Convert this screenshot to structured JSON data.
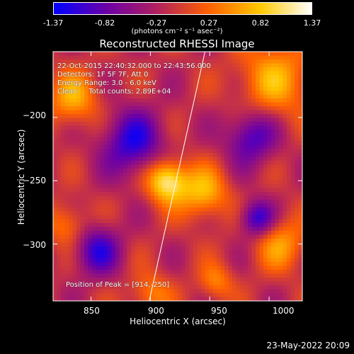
{
  "colorbar": {
    "ticks": [
      "-1.37",
      "-0.82",
      "-0.27",
      "0.27",
      "0.82",
      "1.37"
    ],
    "unit": "(photons cm⁻² s⁻¹ asec⁻²)"
  },
  "chart_data": {
    "type": "heatmap",
    "title": "Reconstructed RHESSI Image",
    "xlabel": "Heliocentric X (arcsec)",
    "ylabel": "Heliocentric Y (arcsec)",
    "xlim": [
      818,
      1028
    ],
    "ylim": [
      -345,
      -148
    ],
    "xticks": [
      850,
      900,
      950,
      1000
    ],
    "yticks": [
      -200,
      -250,
      -300
    ],
    "xtick_labels": [
      "850",
      "900",
      "950",
      "1000"
    ],
    "ytick_labels": [
      "−200",
      "−250",
      "−300"
    ],
    "color_range": [
      -1.37,
      1.37
    ],
    "colormap": [
      "#0000ff",
      "#6a00a8",
      "#b02060",
      "#ff6000",
      "#ffc800",
      "#ffffff"
    ],
    "peak": [
      914,
      -250
    ],
    "limb_line": [
      [
        899,
        -345
      ],
      [
        946,
        -148
      ]
    ],
    "sources": [
      {
        "x": 914,
        "y": -250,
        "sigma": 12,
        "amp": 1.37
      },
      {
        "x": 945,
        "y": -260,
        "sigma": 14,
        "amp": 0.9
      },
      {
        "x": 835,
        "y": -185,
        "sigma": 15,
        "amp": 0.8
      },
      {
        "x": 1005,
        "y": -170,
        "sigma": 22,
        "amp": 0.8
      },
      {
        "x": 830,
        "y": -285,
        "sigma": 12,
        "amp": 0.6
      },
      {
        "x": 1010,
        "y": -300,
        "sigma": 15,
        "amp": 0.7
      },
      {
        "x": 900,
        "y": -340,
        "sigma": 12,
        "amp": 0.6
      },
      {
        "x": 955,
        "y": -330,
        "sigma": 10,
        "amp": 0.6
      },
      {
        "x": 885,
        "y": -220,
        "sigma": 18,
        "amp": -1.0
      },
      {
        "x": 985,
        "y": -215,
        "sigma": 15,
        "amp": -0.9
      },
      {
        "x": 855,
        "y": -305,
        "sigma": 14,
        "amp": -0.9
      },
      {
        "x": 990,
        "y": -280,
        "sigma": 10,
        "amp": -1.0
      }
    ]
  },
  "info": {
    "line1": "22-Oct-2015 22:40:32.000 to 22:43:56.000",
    "line2": "Detectors: 1F 5F 7F, Att 0",
    "line3": "Energy Range: 3.0 - 6.0 keV",
    "line4": "Clean     Total counts: 2.89E+04",
    "peak_text": "Position of Peak = [914,-250]"
  },
  "timestamp": "23-May-2022 20:09"
}
